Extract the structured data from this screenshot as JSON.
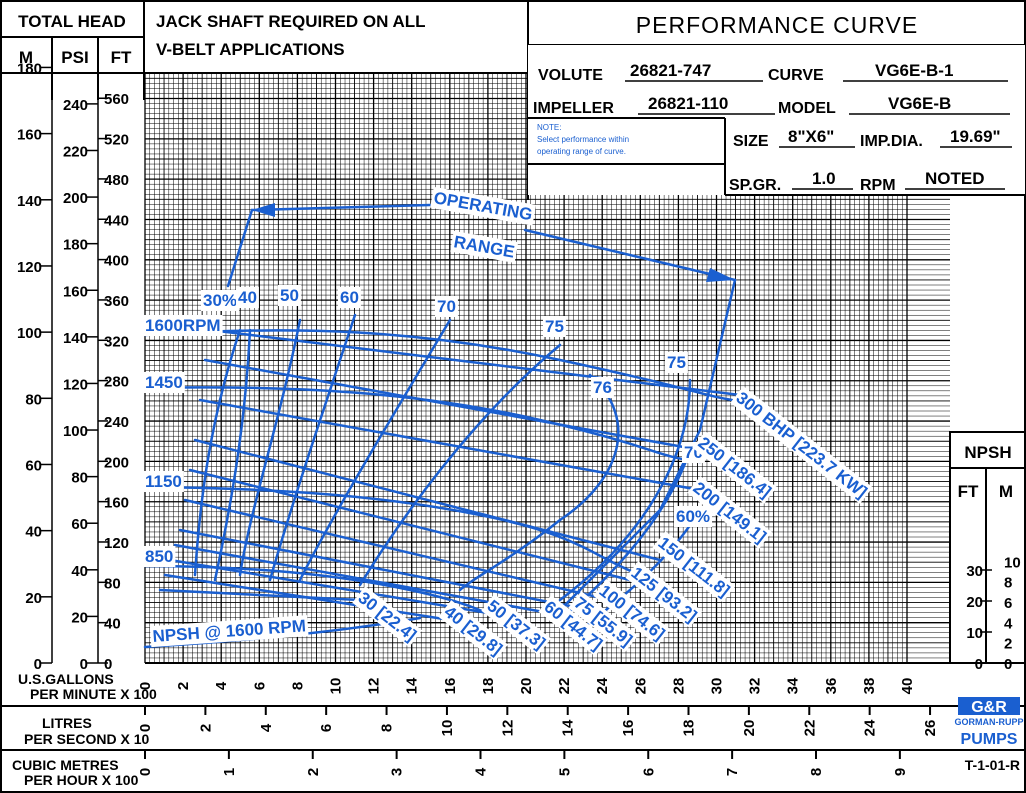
{
  "header": {
    "total_head": "TOTAL HEAD",
    "col_m": "M",
    "col_psi": "PSI",
    "col_ft": "FT",
    "note_line1": "JACK SHAFT REQUIRED ON ALL",
    "note_line2": "V-BELT APPLICATIONS",
    "title": "PERFORMANCE CURVE"
  },
  "info": {
    "volute_label": "VOLUTE",
    "volute_value": "26821-747",
    "curve_label": "CURVE",
    "curve_value": "VG6E-B-1",
    "impeller_label": "IMPELLER",
    "impeller_value": "26821-110",
    "model_label": "MODEL",
    "model_value": "VG6E-B",
    "note_title": "NOTE:",
    "note_line1": "Select performance within",
    "note_line2": "operating range of curve.",
    "size_label": "SIZE",
    "size_value": "8\"X6\"",
    "impdia_label": "IMP.DIA.",
    "impdia_value": "19.69\"",
    "spgr_label": "SP.GR.",
    "spgr_value": "1.0",
    "rpm_label": "RPM",
    "rpm_value": "NOTED"
  },
  "npsh_box": {
    "title": "NPSH",
    "col_ft": "FT",
    "col_m": "M"
  },
  "x_axis": {
    "gpm_label_1": "U.S.GALLONS",
    "gpm_label_2": "PER MINUTE X 100",
    "lps_label_1": "LITRES",
    "lps_label_2": "PER SECOND X 10",
    "cmh_label_1": "CUBIC METRES",
    "cmh_label_2": "PER HOUR X 100"
  },
  "logo": {
    "mark": "G&R",
    "line1": "GORMAN-RUPP",
    "line2": "PUMPS"
  },
  "doc_code": "T-1-01-R",
  "chart_data": {
    "type": "line",
    "title": "PERFORMANCE CURVE",
    "xlabel": "U.S.GALLONS PER MINUTE X 100",
    "ylabel": "TOTAL HEAD",
    "xlim": [
      0,
      40
    ],
    "ylim": [
      0,
      600
    ],
    "grid": true,
    "y_ticks_ft": [
      "0",
      "40",
      "80",
      "120",
      "160",
      "200",
      "240",
      "280",
      "320",
      "360",
      "400",
      "440",
      "480",
      "520",
      "560"
    ],
    "y_ticks_psi": [
      "0",
      "20",
      "40",
      "60",
      "80",
      "100",
      "120",
      "140",
      "160",
      "180",
      "200",
      "220",
      "240"
    ],
    "y_ticks_m": [
      "0",
      "20",
      "40",
      "60",
      "80",
      "100",
      "120",
      "140",
      "160",
      "180"
    ],
    "x_ticks_gpm": [
      "0",
      "2",
      "4",
      "6",
      "8",
      "10",
      "12",
      "14",
      "16",
      "18",
      "20",
      "22",
      "24",
      "26",
      "28",
      "30",
      "32",
      "34",
      "36",
      "38",
      "40"
    ],
    "x_ticks_lps": [
      "0",
      "2",
      "4",
      "6",
      "8",
      "10",
      "12",
      "14",
      "16",
      "18",
      "20",
      "22",
      "24",
      "26"
    ],
    "x_ticks_cmh": [
      "0",
      "1",
      "2",
      "3",
      "4",
      "5",
      "6",
      "7",
      "8",
      "9"
    ],
    "npsh_ticks_ft": [
      "0",
      "10",
      "20",
      "30"
    ],
    "npsh_ticks_m": [
      "0",
      "2",
      "4",
      "6",
      "8",
      "10"
    ],
    "series": [
      {
        "name": "1600RPM",
        "x": [
          0,
          4,
          8,
          12,
          16,
          20,
          24,
          28,
          31
        ],
        "y": [
          340,
          342,
          343,
          340,
          333,
          322,
          305,
          280,
          262
        ]
      },
      {
        "name": "1450",
        "x": [
          0,
          4,
          8,
          12,
          16,
          20,
          24,
          28
        ],
        "y": [
          278,
          280,
          280,
          277,
          270,
          258,
          240,
          215
        ]
      },
      {
        "name": "1150",
        "x": [
          0,
          4,
          8,
          12,
          16,
          20,
          24
        ],
        "y": [
          175,
          176,
          175,
          172,
          165,
          153,
          138
        ]
      },
      {
        "name": "850",
        "x": [
          0,
          4,
          8,
          12,
          16,
          20
        ],
        "y": [
          96,
          96,
          95,
          92,
          85,
          75
        ]
      },
      {
        "name": "NPSH @ 1600 RPM",
        "x": [
          0,
          6,
          12,
          18,
          22
        ],
        "y": [
          8,
          16,
          26,
          40,
          52
        ]
      }
    ],
    "efficiency_labels": [
      "30%",
      "40",
      "50",
      "60",
      "70",
      "75",
      "76",
      "75",
      "70",
      "60%"
    ],
    "bhp_labels": [
      "300 BHP [223.7 KW]",
      "250 [186.4]",
      "200 [149.1]",
      "150 [111.8]",
      "125 [93.2]",
      "100 [74.6]",
      "75 [55.9]",
      "60 [44.7]",
      "50 [37.3]",
      "40 [29.8]",
      "30 [22.4]"
    ],
    "annotations": [
      "OPERATING",
      "RANGE"
    ]
  }
}
